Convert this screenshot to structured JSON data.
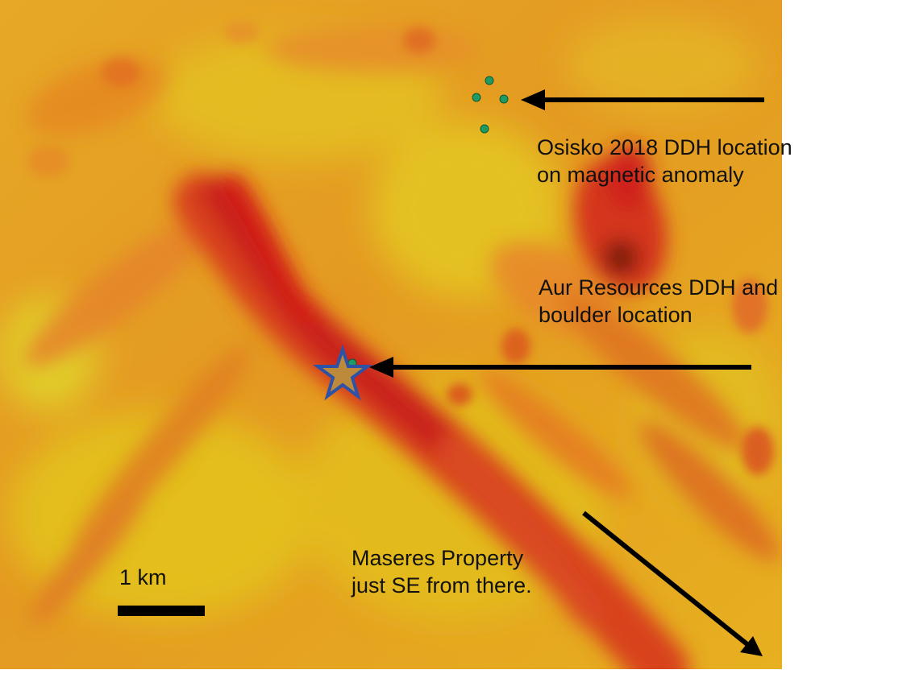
{
  "map": {
    "base_layer": "magnetic anomaly color map (yellow to red)",
    "colors": {
      "low": "#e8c21c",
      "mid": "#e9931f",
      "high": "#d8341a",
      "peak": "#c21414",
      "drill_hole": "#1f9a63",
      "star_fill": "#bc8a3a",
      "star_outline": "#2e52a6",
      "arrow": "#000000"
    },
    "icons": {
      "drill_hole": "green-circle-icon",
      "boulder": "star-icon",
      "pointer": "arrow-icon"
    }
  },
  "labels": {
    "osisko": {
      "line1": "Osisko 2018 DDH location",
      "line2": "on magnetic anomaly"
    },
    "aur": {
      "line1": "Aur Resources DDH and",
      "line2": "boulder location"
    },
    "maseres": {
      "line1": "Maseres Property",
      "line2": "just SE from there."
    }
  },
  "scale_bar": {
    "label": "1 km"
  }
}
